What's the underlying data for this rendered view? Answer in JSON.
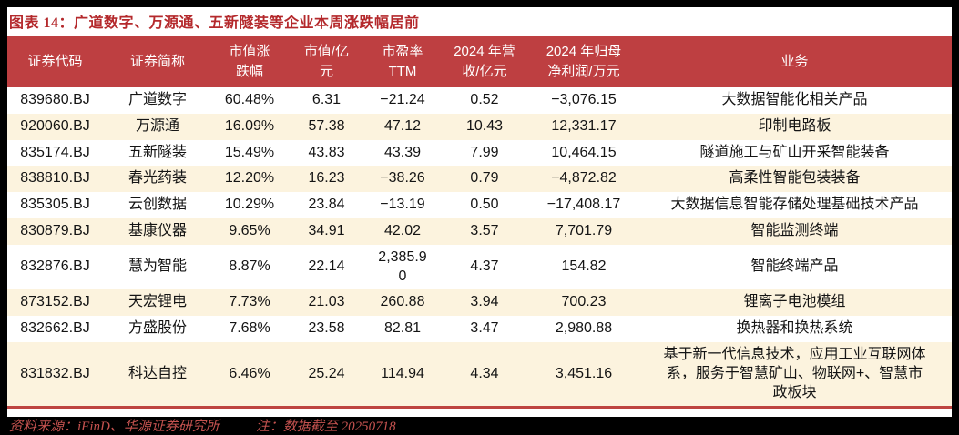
{
  "title": "图表 14：广道数字、万源通、五新隧装等企业本周涨跌幅居前",
  "colors": {
    "header_bg": "#be3f41",
    "row_alt_bg": "#fcf3de",
    "accent_line_red": "#be4440",
    "title_red": "#b4292c",
    "footer_red": "#c4524f"
  },
  "table": {
    "columns": [
      {
        "id": "code",
        "label": "证券代码"
      },
      {
        "id": "name",
        "label": "证券简称"
      },
      {
        "id": "chg",
        "label": "市值涨\n跌幅"
      },
      {
        "id": "mcap",
        "label": "市值/亿\n元"
      },
      {
        "id": "pe",
        "label": "市盈率\nTTM"
      },
      {
        "id": "rev",
        "label": "2024 年营\n收/亿元"
      },
      {
        "id": "profit",
        "label": "2024 年归母\n净利润/万元"
      },
      {
        "id": "biz",
        "label": "业务"
      }
    ],
    "rows": [
      {
        "code": "839680.BJ",
        "name": "广道数字",
        "chg": "60.48%",
        "mcap": "6.31",
        "pe": "−21.24",
        "rev": "0.52",
        "profit": "−3,076.15",
        "biz": "大数据智能化相关产品"
      },
      {
        "code": "920060.BJ",
        "name": "万源通",
        "chg": "16.09%",
        "mcap": "57.38",
        "pe": "47.12",
        "rev": "10.43",
        "profit": "12,331.17",
        "biz": "印制电路板"
      },
      {
        "code": "835174.BJ",
        "name": "五新隧装",
        "chg": "15.49%",
        "mcap": "43.83",
        "pe": "43.39",
        "rev": "7.99",
        "profit": "10,464.15",
        "biz": "隧道施工与矿山开采智能装备"
      },
      {
        "code": "838810.BJ",
        "name": "春光药装",
        "chg": "12.20%",
        "mcap": "16.23",
        "pe": "−38.26",
        "rev": "0.79",
        "profit": "−4,872.82",
        "biz": "高柔性智能包装装备"
      },
      {
        "code": "835305.BJ",
        "name": "云创数据",
        "chg": "10.29%",
        "mcap": "23.84",
        "pe": "−13.19",
        "rev": "0.50",
        "profit": "−17,408.17",
        "biz": "大数据信息智能存储处理基础技术产品"
      },
      {
        "code": "830879.BJ",
        "name": "基康仪器",
        "chg": "9.65%",
        "mcap": "34.91",
        "pe": "42.02",
        "rev": "3.57",
        "profit": "7,701.79",
        "biz": "智能监测终端"
      },
      {
        "code": "832876.BJ",
        "name": "慧为智能",
        "chg": "8.87%",
        "mcap": "22.14",
        "pe": "2,385.90",
        "rev": "4.37",
        "profit": "154.82",
        "biz": "智能终端产品"
      },
      {
        "code": "873152.BJ",
        "name": "天宏锂电",
        "chg": "7.73%",
        "mcap": "21.03",
        "pe": "260.88",
        "rev": "3.94",
        "profit": "700.23",
        "biz": "锂离子电池模组"
      },
      {
        "code": "832662.BJ",
        "name": "方盛股份",
        "chg": "7.68%",
        "mcap": "23.58",
        "pe": "82.81",
        "rev": "3.47",
        "profit": "2,980.88",
        "biz": "换热器和换热系统"
      },
      {
        "code": "831832.BJ",
        "name": "科达自控",
        "chg": "6.46%",
        "mcap": "25.24",
        "pe": "114.94",
        "rev": "4.34",
        "profit": "3,451.16",
        "biz": "基于新一代信息技术，应用工业互联网体系，服务于智慧矿山、物联网+、智慧市政板块"
      }
    ]
  },
  "footer": {
    "source": "资料来源：iFinD、华源证券研究所",
    "note": "注：数据截至 20250718"
  },
  "chart_data": {
    "type": "table",
    "title": "图表 14：广道数字、万源通、五新隧装等企业本周涨跌幅居前",
    "columns": [
      "证券代码",
      "证券简称",
      "市值涨跌幅",
      "市值/亿元",
      "市盈率TTM",
      "2024年营收/亿元",
      "2024年归母净利润/万元",
      "业务"
    ],
    "rows": [
      [
        "839680.BJ",
        "广道数字",
        "60.48%",
        6.31,
        -21.24,
        0.52,
        -3076.15,
        "大数据智能化相关产品"
      ],
      [
        "920060.BJ",
        "万源通",
        "16.09%",
        57.38,
        47.12,
        10.43,
        12331.17,
        "印制电路板"
      ],
      [
        "835174.BJ",
        "五新隧装",
        "15.49%",
        43.83,
        43.39,
        7.99,
        10464.15,
        "隧道施工与矿山开采智能装备"
      ],
      [
        "838810.BJ",
        "春光药装",
        "12.20%",
        16.23,
        -38.26,
        0.79,
        -4872.82,
        "高柔性智能包装装备"
      ],
      [
        "835305.BJ",
        "云创数据",
        "10.29%",
        23.84,
        -13.19,
        0.5,
        -17408.17,
        "大数据信息智能存储处理基础技术产品"
      ],
      [
        "830879.BJ",
        "基康仪器",
        "9.65%",
        34.91,
        42.02,
        3.57,
        7701.79,
        "智能监测终端"
      ],
      [
        "832876.BJ",
        "慧为智能",
        "8.87%",
        22.14,
        2385.9,
        4.37,
        154.82,
        "智能终端产品"
      ],
      [
        "873152.BJ",
        "天宏锂电",
        "7.73%",
        21.03,
        260.88,
        3.94,
        700.23,
        "锂离子电池模组"
      ],
      [
        "832662.BJ",
        "方盛股份",
        "7.68%",
        23.58,
        82.81,
        3.47,
        2980.88,
        "换热器和换热系统"
      ],
      [
        "831832.BJ",
        "科达自控",
        "6.46%",
        25.24,
        114.94,
        4.34,
        3451.16,
        "基于新一代信息技术，应用工业互联网体系，服务于智慧矿山、物联网+、智慧市政板块"
      ]
    ],
    "source_note": "资料来源：iFinD、华源证券研究所  注：数据截至 20250718"
  }
}
